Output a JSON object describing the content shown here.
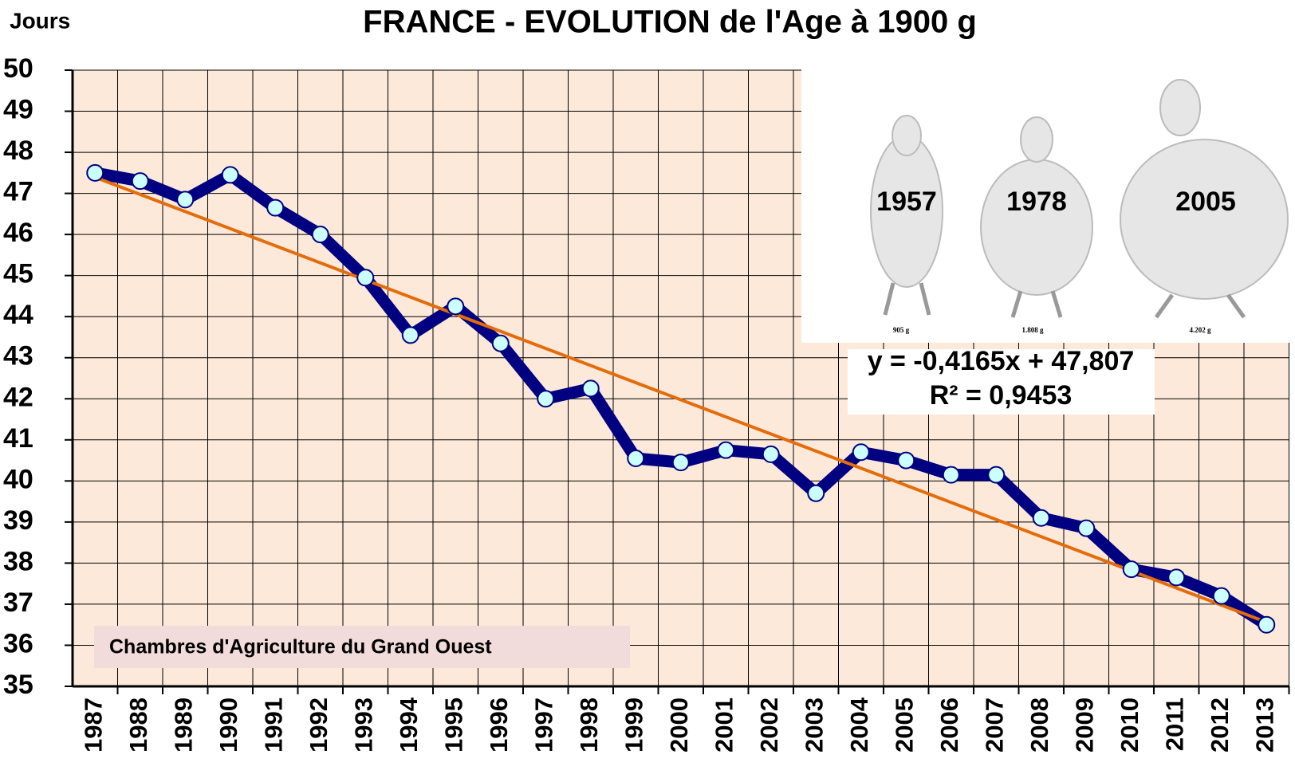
{
  "chart_data": {
    "type": "line",
    "title": "FRANCE - EVOLUTION de l'Age à 1900 g",
    "y_label": "Jours",
    "categories": [
      "1987",
      "1988",
      "1989",
      "1990",
      "1991",
      "1992",
      "1993",
      "1994",
      "1995",
      "1996",
      "1997",
      "1998",
      "1999",
      "2000",
      "2001",
      "2002",
      "2003",
      "2004",
      "2005",
      "2006",
      "2007",
      "2008",
      "2009",
      "2010",
      "2011",
      "2012",
      "2013"
    ],
    "series": [
      {
        "color": "#000080",
        "marker_color": "#ccffff",
        "values": [
          47.5,
          47.3,
          46.85,
          47.45,
          46.65,
          46.0,
          44.95,
          43.55,
          44.25,
          43.35,
          42.0,
          42.25,
          40.55,
          40.45,
          40.75,
          40.65,
          39.7,
          40.7,
          40.5,
          40.15,
          40.15,
          39.1,
          38.85,
          37.85,
          37.65,
          37.2,
          36.5
        ]
      }
    ],
    "trendline": {
      "slope": -0.4165,
      "intercept": 47.807,
      "color": "#e46c0a",
      "label": "y = -0,4165x + 47,807",
      "r2_label": "R² = 0,9453"
    },
    "ylim": [
      35,
      50
    ],
    "yticks": [
      35,
      36,
      37,
      38,
      39,
      40,
      41,
      42,
      43,
      44,
      45,
      46,
      47,
      48,
      49,
      50
    ],
    "grid": true,
    "background": "#fde9d9",
    "source": "Chambres d'Agriculture du Grand Ouest",
    "inset": {
      "years": [
        "1957",
        "1978",
        "2005"
      ],
      "weights": [
        "905 g",
        "1.808 g",
        "4.202 g"
      ]
    }
  }
}
